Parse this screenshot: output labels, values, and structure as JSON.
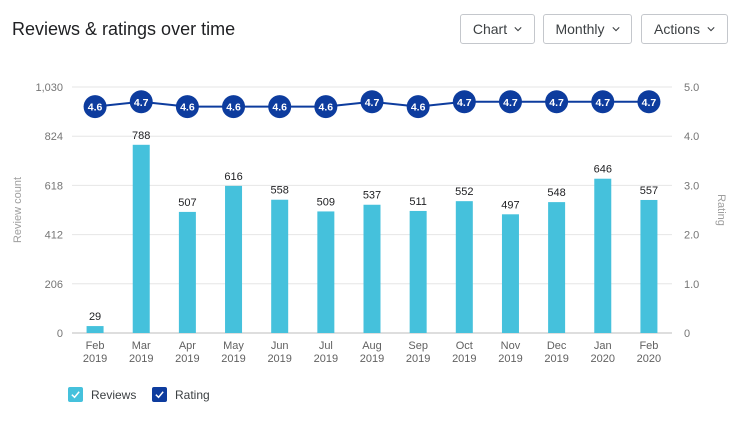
{
  "header": {
    "title": "Reviews & ratings over time",
    "chart_button": "Chart",
    "period_button": "Monthly",
    "actions_button": "Actions"
  },
  "legend": [
    {
      "label": "Reviews",
      "color": "#45c1dc"
    },
    {
      "label": "Rating",
      "color": "#0d3c9e"
    }
  ],
  "chart_data": {
    "type": "bar",
    "categories": [
      "Feb 2019",
      "Mar 2019",
      "Apr 2019",
      "May 2019",
      "Jun 2019",
      "Jul 2019",
      "Aug 2019",
      "Sep 2019",
      "Oct 2019",
      "Nov 2019",
      "Dec 2019",
      "Jan 2020",
      "Feb 2020"
    ],
    "series": [
      {
        "name": "Reviews",
        "type": "bar",
        "axis": "left",
        "color": "#45c1dc",
        "values": [
          29,
          788,
          507,
          616,
          558,
          509,
          537,
          511,
          552,
          497,
          548,
          646,
          557
        ]
      },
      {
        "name": "Rating",
        "type": "line",
        "axis": "right",
        "color": "#0d3c9e",
        "values": [
          4.6,
          4.7,
          4.6,
          4.6,
          4.6,
          4.6,
          4.7,
          4.6,
          4.7,
          4.7,
          4.7,
          4.7,
          4.7
        ]
      }
    ],
    "ylabel": "Review count",
    "y2label": "Rating",
    "ylim": [
      0,
      1030
    ],
    "yticks": [
      "0",
      "206",
      "412",
      "618",
      "824",
      "1,030"
    ],
    "y2lim": [
      0,
      5
    ],
    "y2ticks": [
      "0",
      "1.0",
      "2.0",
      "3.0",
      "4.0",
      "5.0"
    ],
    "grid": true,
    "legend_position": "bottom-left"
  }
}
